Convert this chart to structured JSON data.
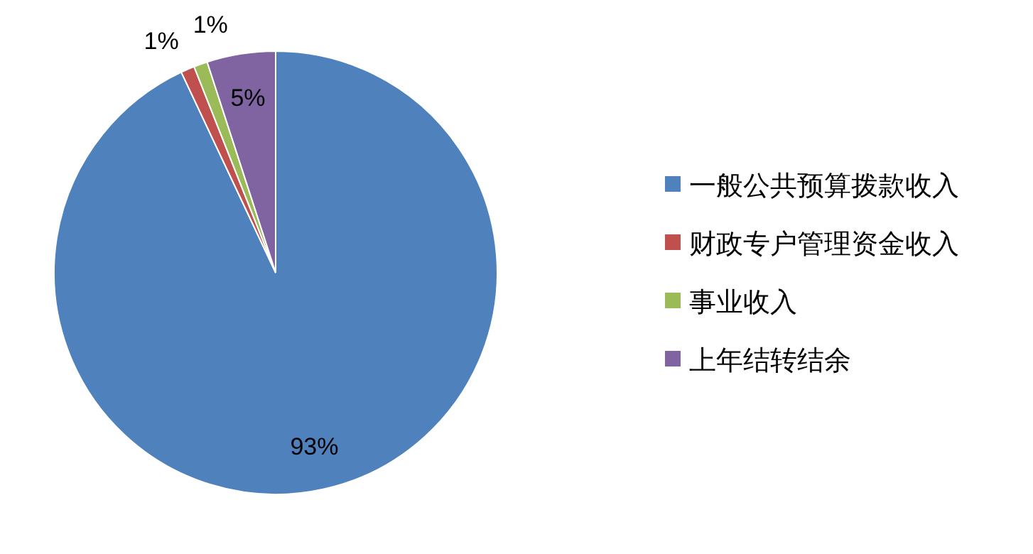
{
  "chart_data": {
    "type": "pie",
    "categories": [
      "一般公共预算拨款收入",
      "财政专户管理资金收入",
      "事业收入",
      "上年结转结余"
    ],
    "values": [
      93,
      1,
      1,
      5
    ],
    "colors": [
      "#4f81bd",
      "#c0504d",
      "#9bbb59",
      "#8064a2"
    ],
    "value_labels": [
      "93%",
      "1%",
      "1%",
      "5%"
    ],
    "legend": "right"
  }
}
